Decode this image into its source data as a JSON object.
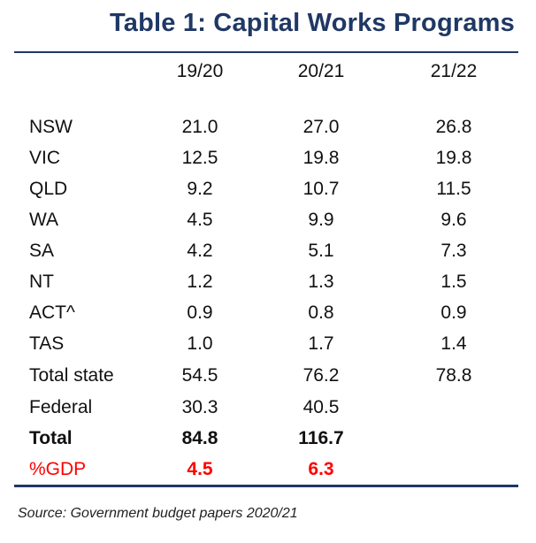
{
  "title": "Table 1: Capital Works Programs",
  "columns": [
    "",
    "19/20",
    "20/21",
    "21/22"
  ],
  "rows": [
    {
      "label": "NSW",
      "v1": "21.0",
      "v2": "27.0",
      "v3": "26.8"
    },
    {
      "label": "VIC",
      "v1": "12.5",
      "v2": "19.8",
      "v3": "19.8"
    },
    {
      "label": "QLD",
      "v1": "9.2",
      "v2": "10.7",
      "v3": "11.5"
    },
    {
      "label": "WA",
      "v1": "4.5",
      "v2": "9.9",
      "v3": "9.6"
    },
    {
      "label": "SA",
      "v1": "4.2",
      "v2": "5.1",
      "v3": "7.3"
    },
    {
      "label": "NT",
      "v1": "1.2",
      "v2": "1.3",
      "v3": "1.5"
    },
    {
      "label": "ACT^",
      "v1": "0.9",
      "v2": "0.8",
      "v3": "0.9"
    },
    {
      "label": "TAS",
      "v1": "1.0",
      "v2": "1.7",
      "v3": "1.4"
    },
    {
      "label": "Total state",
      "v1": "54.5",
      "v2": "76.2",
      "v3": "78.8"
    },
    {
      "label": "Federal",
      "v1": "30.3",
      "v2": "40.5",
      "v3": ""
    },
    {
      "label": "Total",
      "v1": "84.8",
      "v2": "116.7",
      "v3": ""
    },
    {
      "label": "%GDP",
      "v1": "4.5",
      "v2": "6.3",
      "v3": ""
    }
  ],
  "source": "Source: Government budget papers 2020/21",
  "colors": {
    "title": "#1f3864",
    "gdp": "#ff0000"
  }
}
